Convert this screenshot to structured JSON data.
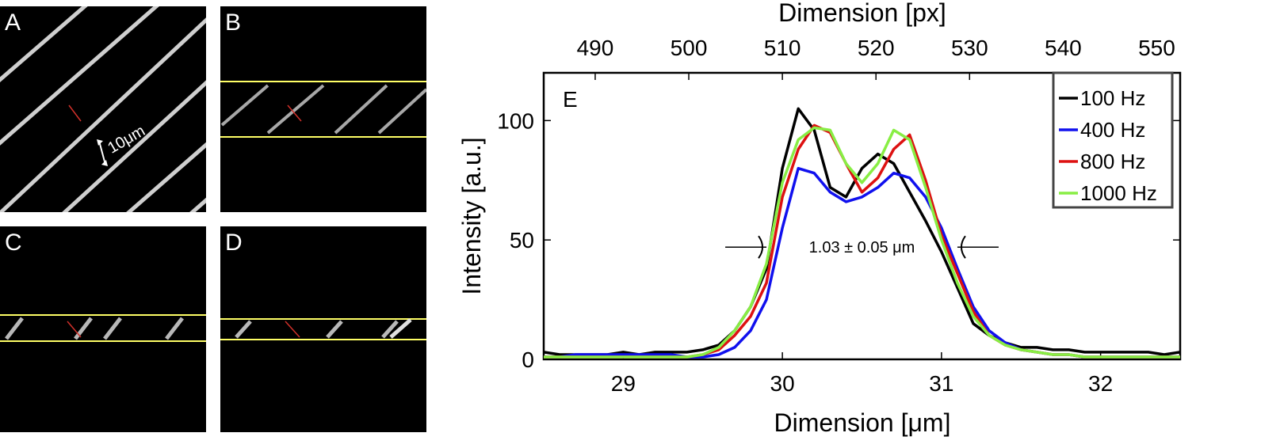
{
  "panels": [
    {
      "letter": "A",
      "scale_label": "10μm"
    },
    {
      "letter": "B"
    },
    {
      "letter": "C"
    },
    {
      "letter": "D"
    }
  ],
  "colors": {
    "highlight": "#ffff66",
    "marker": "#d0302a",
    "stripe": "#d8d8d8"
  },
  "chart_data": {
    "type": "line",
    "panel_label": "E",
    "xlabel": "Dimension [μm]",
    "ylabel": "Intensity [a.u.]",
    "top_xlabel": "Dimension [px]",
    "xlim": [
      28.5,
      32.5
    ],
    "ylim": [
      0,
      120
    ],
    "xticks": [
      29,
      30,
      31,
      32
    ],
    "yticks": [
      0,
      50,
      100
    ],
    "top_xlim": [
      484.5,
      552.5
    ],
    "top_xticks": [
      490,
      500,
      510,
      520,
      530,
      540,
      550
    ],
    "legend": {
      "position": "top-right",
      "entries": [
        "100 Hz",
        "400 Hz",
        "800 Hz",
        "1000 Hz"
      ]
    },
    "annotation": {
      "text": "1.03 ± 0.05 μm",
      "x_left": 29.9,
      "x_right": 31.1,
      "y": 47
    },
    "x": [
      28.5,
      28.6,
      28.7,
      28.8,
      28.9,
      29.0,
      29.1,
      29.2,
      29.3,
      29.4,
      29.5,
      29.6,
      29.7,
      29.8,
      29.9,
      30.0,
      30.1,
      30.2,
      30.3,
      30.4,
      30.5,
      30.6,
      30.7,
      30.8,
      30.9,
      31.0,
      31.1,
      31.2,
      31.3,
      31.4,
      31.5,
      31.6,
      31.7,
      31.8,
      31.9,
      32.0,
      32.1,
      32.2,
      32.3,
      32.4,
      32.5
    ],
    "series": [
      {
        "name": "100 Hz",
        "color": "#000000",
        "values": [
          3,
          2,
          2,
          2,
          2,
          3,
          2,
          3,
          3,
          3,
          4,
          6,
          12,
          22,
          38,
          80,
          105,
          96,
          72,
          68,
          80,
          86,
          82,
          70,
          58,
          45,
          30,
          15,
          10,
          7,
          5,
          5,
          4,
          4,
          3,
          3,
          3,
          3,
          3,
          2,
          3
        ]
      },
      {
        "name": "400 Hz",
        "color": "#1010ee",
        "values": [
          1,
          1,
          2,
          2,
          2,
          2,
          2,
          2,
          2,
          1,
          1,
          2,
          5,
          12,
          25,
          55,
          80,
          78,
          70,
          66,
          68,
          72,
          78,
          76,
          68,
          55,
          38,
          22,
          12,
          7,
          4,
          3,
          2,
          2,
          1,
          1,
          1,
          1,
          1,
          1,
          1
        ]
      },
      {
        "name": "800 Hz",
        "color": "#dd1111",
        "values": [
          1,
          1,
          1,
          1,
          1,
          1,
          1,
          1,
          1,
          1,
          2,
          4,
          10,
          18,
          32,
          68,
          88,
          98,
          95,
          82,
          70,
          76,
          88,
          94,
          75,
          52,
          36,
          20,
          10,
          6,
          4,
          3,
          2,
          2,
          1,
          1,
          1,
          1,
          1,
          1,
          1
        ]
      },
      {
        "name": "1000 Hz",
        "color": "#88ee44",
        "values": [
          1,
          1,
          1,
          1,
          1,
          1,
          1,
          1,
          1,
          1,
          2,
          5,
          12,
          22,
          40,
          74,
          92,
          97,
          96,
          82,
          74,
          82,
          96,
          92,
          72,
          50,
          32,
          18,
          10,
          6,
          4,
          3,
          2,
          2,
          1,
          1,
          1,
          1,
          1,
          1,
          1
        ]
      }
    ]
  }
}
